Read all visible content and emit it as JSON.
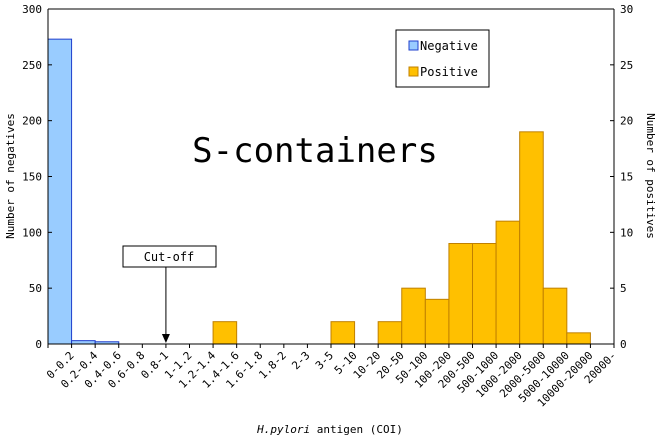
{
  "chart_data": {
    "type": "bar",
    "annotation_text": "S-containers",
    "cutoff_label": "Cut-off",
    "xlabel_italic": "H.pylori",
    "xlabel_rest": " antigen (COI)",
    "ylabel_left": "Number of negatives",
    "ylabel_right": "Number of positives",
    "ylim_left": [
      0,
      300
    ],
    "ylim_right": [
      0,
      30
    ],
    "left_ticks": [
      "0",
      "50",
      "100",
      "150",
      "200",
      "250",
      "300"
    ],
    "right_ticks": [
      "0",
      "5",
      "10",
      "15",
      "20",
      "25",
      "30"
    ],
    "legend_position": "top-right",
    "categories": [
      "0-0.2",
      "0.2-0.4",
      "0.4-0.6",
      "0.6-0.8",
      "0.8-1",
      "1-1.2",
      "1.2-1.4",
      "1.4-1.6",
      "1.6-1.8",
      "1.8-2",
      "2-3",
      "3-5",
      "5-10",
      "10-20",
      "20-50",
      "50-100",
      "100-200",
      "200-500",
      "500-1000",
      "1000-2000",
      "2000-5000",
      "5000-10000",
      "10000-20000",
      "20000-"
    ],
    "cutoff_after_category": "0.8-1",
    "series": [
      {
        "name": "Negative",
        "axis": "left",
        "color": "#99ccff",
        "edge": "#1f3fcc",
        "values": [
          273,
          3,
          2,
          0,
          0,
          0,
          0,
          0,
          0,
          0,
          0,
          0,
          0,
          0,
          0,
          0,
          0,
          0,
          0,
          0,
          0,
          0,
          0,
          0
        ]
      },
      {
        "name": "Positive",
        "axis": "right",
        "color": "#ffc000",
        "edge": "#c08000",
        "values": [
          0,
          0,
          0,
          0,
          0,
          0,
          0,
          2,
          0,
          0,
          0,
          0,
          2,
          0,
          2,
          5,
          4,
          9,
          9,
          11,
          19,
          5,
          1,
          0
        ]
      }
    ]
  }
}
